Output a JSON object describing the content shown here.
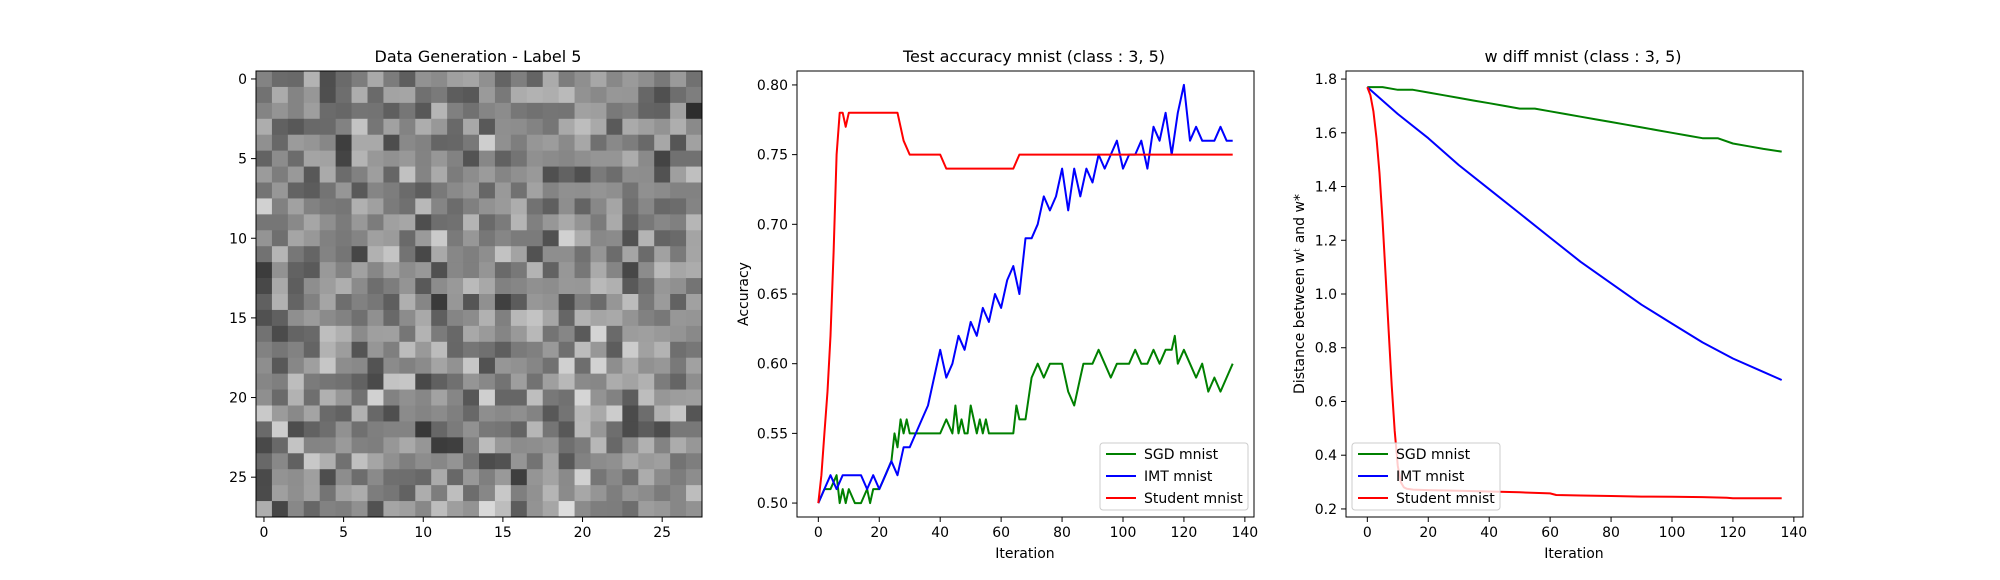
{
  "chart_data": [
    {
      "type": "heatmap",
      "title": "Data Generation - Label 5",
      "xlabel": "",
      "ylabel": "",
      "size": [
        28,
        28
      ],
      "xlim": [
        -0.5,
        27.5
      ],
      "ylim": [
        27.5,
        -0.5
      ],
      "xticks": [
        0,
        5,
        10,
        15,
        20,
        25
      ],
      "yticks": [
        0,
        5,
        10,
        15,
        20,
        25
      ],
      "colormap": "gray",
      "grid": false
    },
    {
      "type": "line",
      "title": "Test accuracy mnist (class : 3, 5)",
      "xlabel": "Iteration",
      "ylabel": "Accuracy",
      "xlim": [
        -7,
        143
      ],
      "ylim": [
        0.49,
        0.81
      ],
      "xticks": [
        0,
        20,
        40,
        60,
        80,
        100,
        120,
        140
      ],
      "yticks": [
        "0.50",
        "0.55",
        "0.60",
        "0.65",
        "0.70",
        "0.75",
        "0.80"
      ],
      "legend_position": "lower-right",
      "grid": false,
      "series": [
        {
          "name": "SGD mnist",
          "color": "#008000",
          "x": [
            0,
            2,
            4,
            6,
            7,
            8,
            9,
            10,
            12,
            14,
            16,
            17,
            18,
            20,
            22,
            24,
            25,
            26,
            27,
            28,
            29,
            30,
            32,
            34,
            36,
            38,
            40,
            42,
            44,
            45,
            46,
            47,
            48,
            49,
            50,
            52,
            53,
            54,
            55,
            56,
            58,
            60,
            62,
            64,
            65,
            66,
            68,
            70,
            72,
            74,
            76,
            78,
            80,
            82,
            84,
            86,
            87,
            88,
            90,
            92,
            94,
            96,
            98,
            100,
            102,
            104,
            106,
            108,
            110,
            112,
            114,
            116,
            117,
            118,
            120,
            122,
            124,
            126,
            128,
            130,
            132,
            134,
            136
          ],
          "y": [
            0.5,
            0.51,
            0.51,
            0.52,
            0.5,
            0.51,
            0.5,
            0.51,
            0.5,
            0.5,
            0.51,
            0.5,
            0.51,
            0.51,
            0.52,
            0.53,
            0.55,
            0.54,
            0.56,
            0.55,
            0.56,
            0.55,
            0.55,
            0.55,
            0.55,
            0.55,
            0.55,
            0.56,
            0.55,
            0.57,
            0.55,
            0.56,
            0.55,
            0.55,
            0.57,
            0.55,
            0.56,
            0.55,
            0.56,
            0.55,
            0.55,
            0.55,
            0.55,
            0.55,
            0.57,
            0.56,
            0.56,
            0.59,
            0.6,
            0.59,
            0.6,
            0.6,
            0.6,
            0.58,
            0.57,
            0.59,
            0.6,
            0.6,
            0.6,
            0.61,
            0.6,
            0.59,
            0.6,
            0.6,
            0.6,
            0.61,
            0.6,
            0.6,
            0.61,
            0.6,
            0.61,
            0.61,
            0.62,
            0.6,
            0.61,
            0.6,
            0.59,
            0.6,
            0.58,
            0.59,
            0.58,
            0.59,
            0.6
          ]
        },
        {
          "name": "IMT mnist",
          "color": "#0000ff",
          "x": [
            0,
            2,
            4,
            6,
            8,
            10,
            12,
            14,
            16,
            18,
            20,
            22,
            24,
            26,
            28,
            30,
            32,
            34,
            36,
            38,
            40,
            42,
            44,
            46,
            48,
            50,
            52,
            54,
            56,
            58,
            60,
            62,
            64,
            66,
            68,
            70,
            72,
            74,
            76,
            78,
            80,
            82,
            84,
            86,
            88,
            90,
            92,
            94,
            96,
            98,
            100,
            102,
            104,
            106,
            108,
            110,
            112,
            114,
            116,
            118,
            120,
            122,
            124,
            126,
            128,
            130,
            132,
            134,
            136
          ],
          "y": [
            0.5,
            0.51,
            0.52,
            0.51,
            0.52,
            0.52,
            0.52,
            0.52,
            0.51,
            0.52,
            0.51,
            0.52,
            0.53,
            0.52,
            0.54,
            0.54,
            0.55,
            0.56,
            0.57,
            0.59,
            0.61,
            0.59,
            0.6,
            0.62,
            0.61,
            0.63,
            0.62,
            0.64,
            0.63,
            0.65,
            0.64,
            0.66,
            0.67,
            0.65,
            0.69,
            0.69,
            0.7,
            0.72,
            0.71,
            0.72,
            0.74,
            0.71,
            0.74,
            0.72,
            0.74,
            0.73,
            0.75,
            0.74,
            0.75,
            0.76,
            0.74,
            0.75,
            0.75,
            0.76,
            0.74,
            0.77,
            0.76,
            0.78,
            0.75,
            0.78,
            0.8,
            0.76,
            0.77,
            0.76,
            0.76,
            0.76,
            0.77,
            0.76,
            0.76
          ]
        },
        {
          "name": "Student mnist",
          "color": "#ff0000",
          "x": [
            0,
            1,
            2,
            3,
            4,
            5,
            6,
            7,
            8,
            9,
            10,
            11,
            12,
            13,
            14,
            20,
            26,
            28,
            30,
            32,
            40,
            42,
            50,
            60,
            64,
            66,
            70,
            80,
            90,
            100,
            110,
            120,
            136
          ],
          "y": [
            0.5,
            0.52,
            0.55,
            0.58,
            0.62,
            0.68,
            0.75,
            0.78,
            0.78,
            0.77,
            0.78,
            0.78,
            0.78,
            0.78,
            0.78,
            0.78,
            0.78,
            0.76,
            0.75,
            0.75,
            0.75,
            0.74,
            0.74,
            0.74,
            0.74,
            0.75,
            0.75,
            0.75,
            0.75,
            0.75,
            0.75,
            0.75,
            0.75
          ]
        }
      ]
    },
    {
      "type": "line",
      "title": "w diff mnist (class : 3, 5)",
      "xlabel": "Iteration",
      "ylabel": "Distance between wᵗ and w*",
      "xlim": [
        -7,
        143
      ],
      "ylim": [
        0.17,
        1.83
      ],
      "xticks": [
        0,
        20,
        40,
        60,
        80,
        100,
        120,
        140
      ],
      "yticks": [
        "0.2",
        "0.4",
        "0.6",
        "0.8",
        "1.0",
        "1.2",
        "1.4",
        "1.6",
        "1.8"
      ],
      "legend_position": "lower-left",
      "grid": false,
      "series": [
        {
          "name": "SGD mnist",
          "color": "#008000",
          "x": [
            0,
            5,
            10,
            15,
            20,
            25,
            30,
            35,
            40,
            45,
            50,
            55,
            60,
            65,
            70,
            75,
            80,
            85,
            90,
            95,
            100,
            105,
            110,
            115,
            120,
            125,
            130,
            136
          ],
          "y": [
            1.77,
            1.77,
            1.76,
            1.76,
            1.75,
            1.74,
            1.73,
            1.72,
            1.71,
            1.7,
            1.69,
            1.69,
            1.68,
            1.67,
            1.66,
            1.65,
            1.64,
            1.63,
            1.62,
            1.61,
            1.6,
            1.59,
            1.58,
            1.58,
            1.56,
            1.55,
            1.54,
            1.53
          ]
        },
        {
          "name": "IMT mnist",
          "color": "#0000ff",
          "x": [
            0,
            5,
            10,
            20,
            30,
            40,
            50,
            60,
            70,
            80,
            90,
            100,
            110,
            120,
            130,
            136
          ],
          "y": [
            1.77,
            1.72,
            1.67,
            1.58,
            1.48,
            1.39,
            1.3,
            1.21,
            1.12,
            1.04,
            0.96,
            0.89,
            0.82,
            0.76,
            0.71,
            0.68
          ]
        },
        {
          "name": "Student mnist",
          "color": "#ff0000",
          "x": [
            0,
            1,
            2,
            3,
            4,
            5,
            6,
            7,
            8,
            9,
            10,
            11,
            12,
            13,
            15,
            20,
            30,
            40,
            50,
            60,
            62,
            70,
            80,
            90,
            100,
            110,
            118,
            120,
            130,
            136
          ],
          "y": [
            1.77,
            1.74,
            1.68,
            1.58,
            1.45,
            1.27,
            1.07,
            0.86,
            0.66,
            0.49,
            0.36,
            0.3,
            0.28,
            0.275,
            0.272,
            0.27,
            0.268,
            0.265,
            0.262,
            0.258,
            0.252,
            0.25,
            0.248,
            0.246,
            0.245,
            0.244,
            0.242,
            0.24,
            0.24,
            0.24
          ]
        }
      ]
    }
  ]
}
